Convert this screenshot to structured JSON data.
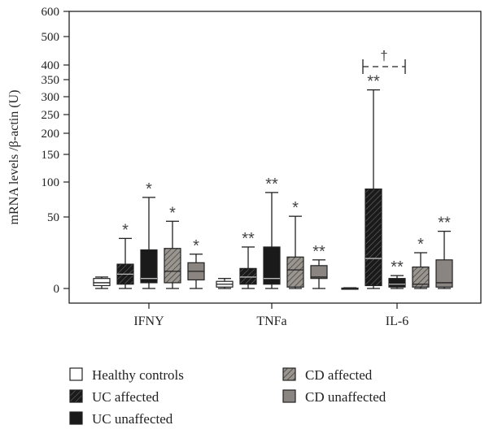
{
  "chart_data": {
    "type": "box",
    "ylabel": "mRNA levels /β-actin (U)",
    "y_ticks": [
      "0",
      "50",
      "100",
      "150",
      "200",
      "250",
      "300",
      "350",
      "400",
      "500",
      "600"
    ],
    "y_scale": "non-linear (compressed above 50)",
    "categories": [
      "IFNY",
      "TNFa",
      "IL-6"
    ],
    "series": [
      {
        "name": "Healthy controls",
        "color": "#ffffff",
        "pattern": "none"
      },
      {
        "name": "UC affected",
        "color": "#1a1a1a",
        "pattern": "diagonal-hatch"
      },
      {
        "name": "UC unaffected",
        "color": "#1a1a1a",
        "pattern": "none"
      },
      {
        "name": "CD affected",
        "color": "#8a8580",
        "pattern": "diagonal-hatch"
      },
      {
        "name": "CD unaffected",
        "color": "#8a8580",
        "pattern": "none"
      }
    ],
    "boxes": [
      {
        "category": "IFNY",
        "series": "Healthy controls",
        "min": 0,
        "q1": 2,
        "median": 4,
        "q3": 7,
        "max": 8,
        "sig": ""
      },
      {
        "category": "IFNY",
        "series": "UC affected",
        "min": 0,
        "q1": 3,
        "median": 10,
        "q3": 17,
        "max": 35,
        "sig": "*"
      },
      {
        "category": "IFNY",
        "series": "UC unaffected",
        "min": 0,
        "q1": 4,
        "median": 7,
        "q3": 27,
        "max": 78,
        "sig": "*"
      },
      {
        "category": "IFNY",
        "series": "CD affected",
        "min": 0,
        "q1": 4,
        "median": 12,
        "q3": 28,
        "max": 47,
        "sig": "*"
      },
      {
        "category": "IFNY",
        "series": "CD unaffected",
        "min": 0,
        "q1": 6,
        "median": 12,
        "q3": 18,
        "max": 24,
        "sig": "*"
      },
      {
        "category": "TNFa",
        "series": "Healthy controls",
        "min": 0,
        "q1": 1,
        "median": 3,
        "q3": 5,
        "max": 7,
        "sig": ""
      },
      {
        "category": "TNFa",
        "series": "UC affected",
        "min": 0,
        "q1": 3,
        "median": 8,
        "q3": 14,
        "max": 29,
        "sig": "**"
      },
      {
        "category": "TNFa",
        "series": "UC unaffected",
        "min": 0,
        "q1": 3,
        "median": 7,
        "q3": 29,
        "max": 85,
        "sig": "**"
      },
      {
        "category": "TNFa",
        "series": "CD affected",
        "min": 0,
        "q1": 1,
        "median": 13,
        "q3": 22,
        "max": 51,
        "sig": "*"
      },
      {
        "category": "TNFa",
        "series": "CD unaffected",
        "min": 0,
        "q1": 7,
        "median": 8,
        "q3": 16,
        "max": 20,
        "sig": "**"
      },
      {
        "category": "IL-6",
        "series": "Healthy controls",
        "min": 0,
        "q1": 0,
        "median": 0,
        "q3": 0.3,
        "max": 0.5,
        "sig": ""
      },
      {
        "category": "IL-6",
        "series": "UC affected",
        "min": 0,
        "q1": 2,
        "median": 21,
        "q3": 90,
        "max": 320,
        "sig": "**"
      },
      {
        "category": "IL-6",
        "series": "UC unaffected",
        "min": 0,
        "q1": 1,
        "median": 3,
        "q3": 7,
        "max": 9,
        "sig": "**"
      },
      {
        "category": "IL-6",
        "series": "CD affected",
        "min": 0,
        "q1": 1,
        "median": 3,
        "q3": 15,
        "max": 25,
        "sig": "*"
      },
      {
        "category": "IL-6",
        "series": "CD unaffected",
        "min": 0,
        "q1": 1,
        "median": 4,
        "q3": 20,
        "max": 40,
        "sig": "**"
      }
    ],
    "annotation": {
      "symbol": "†",
      "between": [
        "UC affected",
        "UC unaffected"
      ],
      "category": "IL-6"
    },
    "legend": [
      "Healthy controls",
      "CD affected",
      "UC affected",
      "CD unaffected",
      "UC unaffected"
    ]
  }
}
